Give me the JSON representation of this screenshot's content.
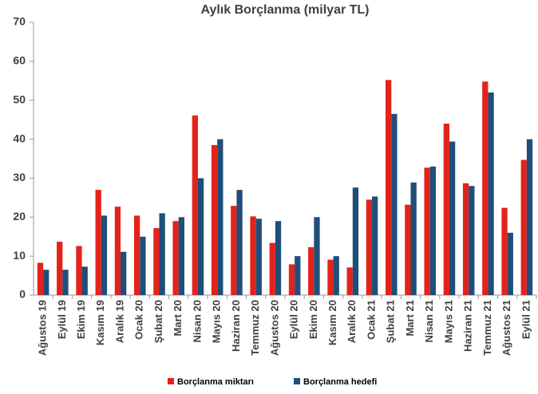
{
  "chart_data": {
    "type": "bar",
    "title": "Aylık Borçlanma (milyar TL)",
    "categories": [
      "Ağustos 19",
      "Eylül 19",
      "Ekim 19",
      "Kasım 19",
      "Aralık 19",
      "Ocak 20",
      "Şubat 20",
      "Mart 20",
      "Nisan 20",
      "Mayıs 20",
      "Haziran 20",
      "Temmuz 20",
      "Ağustos 20",
      "Eylül 20",
      "Ekim 20",
      "Kasım 20",
      "Aralık 20",
      "Ocak 21",
      "Şubat 21",
      "Mart 21",
      "Nisan 21",
      "Mayıs 21",
      "Haziran 21",
      "Temmuz 21",
      "Ağustos 21",
      "Eylül 21"
    ],
    "series": [
      {
        "name": "Borçlanma miktarı",
        "color": "#e3231b",
        "values": [
          8.3,
          13.7,
          12.6,
          27,
          22.7,
          20.4,
          17.2,
          19,
          46.1,
          38.5,
          22.9,
          20.2,
          13.4,
          7.9,
          12.3,
          9.1,
          7.1,
          24.5,
          55.2,
          23.2,
          32.7,
          44,
          28.7,
          54.8,
          22.4,
          34.7
        ]
      },
      {
        "name": "Borçlanma hedefi",
        "color": "#1f4e79",
        "values": [
          6.5,
          6.5,
          7.3,
          20.4,
          11.1,
          15,
          21,
          20,
          30,
          40,
          27,
          19.6,
          19,
          10,
          20,
          10,
          27.6,
          25.3,
          46.5,
          28.9,
          33,
          39.4,
          28,
          52,
          16,
          40
        ]
      }
    ],
    "ylim": [
      0,
      70
    ],
    "yticks": [
      0,
      10,
      20,
      30,
      40,
      50,
      60,
      70
    ],
    "grid": false,
    "legend": "bottom"
  }
}
